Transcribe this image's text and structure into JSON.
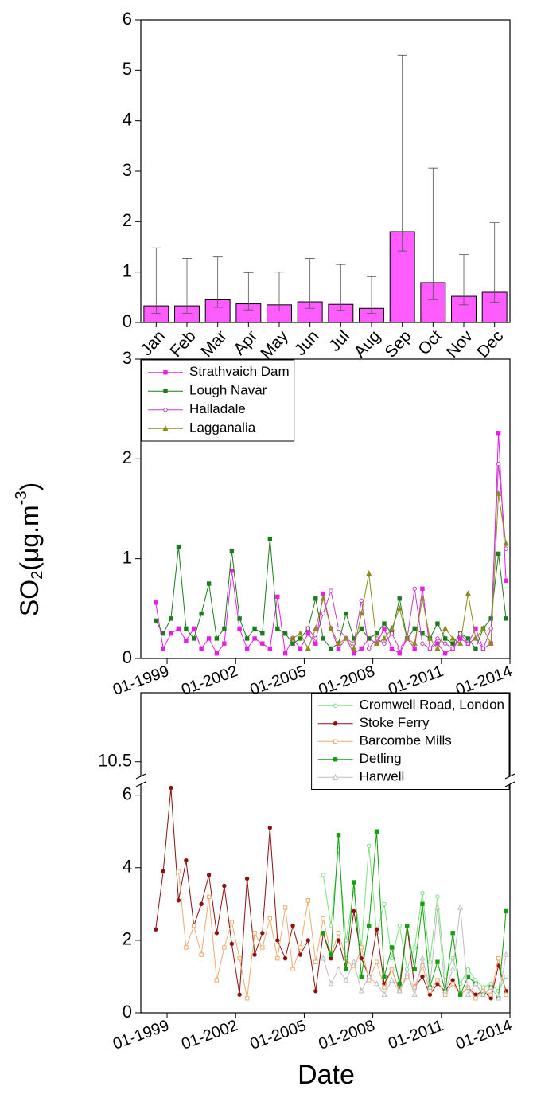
{
  "ylabel": {
    "base": "SO",
    "sub": "2",
    "unit": "(μg.m",
    "sup": "-3",
    "close": ")"
  },
  "chart_data": [
    {
      "type": "bar",
      "color": "#ff5cff",
      "categories": [
        "Jan",
        "Feb",
        "Mar",
        "Apr",
        "May",
        "Jun",
        "Jul",
        "Aug",
        "Sep",
        "Oct",
        "Nov",
        "Dec"
      ],
      "values": [
        0.33,
        0.33,
        0.45,
        0.37,
        0.35,
        0.41,
        0.36,
        0.28,
        1.8,
        0.79,
        0.52,
        0.6
      ],
      "err_plus": [
        1.15,
        0.94,
        0.85,
        0.62,
        0.65,
        0.86,
        0.79,
        0.63,
        3.5,
        2.27,
        0.83,
        1.38
      ],
      "err_minus": [
        0.15,
        0.15,
        0.15,
        0.12,
        0.12,
        0.13,
        0.12,
        0.1,
        0.38,
        0.34,
        0.17,
        0.2
      ],
      "ylim": [
        0,
        6
      ],
      "yticks": [
        0,
        1,
        2,
        3,
        4,
        5,
        6
      ]
    },
    {
      "type": "line",
      "legend": "upper left",
      "xlim": [
        1997.85,
        2014.0
      ],
      "ylim": [
        0,
        3
      ],
      "yticks": [
        0,
        1,
        2,
        3
      ],
      "xticks": [
        {
          "value": 1999,
          "label": "01-1999"
        },
        {
          "value": 2002,
          "label": "01-2002"
        },
        {
          "value": 2005,
          "label": "01-2005"
        },
        {
          "value": 2008,
          "label": "01-2008"
        },
        {
          "value": 2011,
          "label": "01-2011"
        },
        {
          "value": 2014,
          "label": "01-2014"
        }
      ],
      "series": [
        {
          "name": "Strathvaich Dam",
          "color": "#e61ee6",
          "marker": "square",
          "filled": true,
          "x": [
            1998.5,
            1998.83,
            1999.17,
            1999.5,
            1999.83,
            2000.17,
            2000.5,
            2000.83,
            2001.17,
            2001.5,
            2001.83,
            2002.17,
            2002.5,
            2002.83,
            2003.17,
            2003.5,
            2003.83,
            2004.17,
            2004.5,
            2004.83,
            2005.17,
            2005.5,
            2005.83,
            2006.17,
            2006.5,
            2006.83,
            2007.17,
            2007.5,
            2007.83,
            2008.17,
            2008.5,
            2008.83,
            2009.17,
            2009.5,
            2009.83,
            2010.17,
            2010.5,
            2010.83,
            2011.17,
            2011.5,
            2011.83,
            2012.17,
            2012.5,
            2012.83,
            2013.17,
            2013.5,
            2013.83
          ],
          "values": [
            0.56,
            0.1,
            0.25,
            0.3,
            0.18,
            0.3,
            0.1,
            0.2,
            0.05,
            0.15,
            0.88,
            0.3,
            0.1,
            0.2,
            0.15,
            0.1,
            0.62,
            0.05,
            0.2,
            0.1,
            0.25,
            0.15,
            0.65,
            0.3,
            0.1,
            0.2,
            0.05,
            0.1,
            0.2,
            0.15,
            0.3,
            0.1,
            0.05,
            0.2,
            0.1,
            0.7,
            0.1,
            0.15,
            0.05,
            0.1,
            0.2,
            0.15,
            0.3,
            0.1,
            0.15,
            2.26,
            0.78
          ]
        },
        {
          "name": "Lough Navar",
          "color": "#1e7a1e",
          "marker": "square",
          "filled": true,
          "x": [
            1998.5,
            1998.83,
            1999.17,
            1999.5,
            1999.83,
            2000.17,
            2000.5,
            2000.83,
            2001.17,
            2001.5,
            2001.83,
            2002.17,
            2002.5,
            2002.83,
            2003.17,
            2003.5,
            2003.83,
            2004.17,
            2004.5,
            2004.83,
            2005.17,
            2005.5,
            2005.83,
            2006.17,
            2006.5,
            2006.83,
            2007.17,
            2007.5,
            2007.83,
            2008.17,
            2008.5,
            2008.83,
            2009.17,
            2009.5,
            2009.83,
            2010.17,
            2010.5,
            2010.83,
            2011.17,
            2011.5,
            2011.83,
            2012.17,
            2012.5,
            2012.83,
            2013.17,
            2013.5,
            2013.83
          ],
          "values": [
            0.38,
            0.25,
            0.4,
            1.12,
            0.3,
            0.2,
            0.45,
            0.75,
            0.2,
            0.3,
            1.08,
            0.4,
            0.2,
            0.3,
            0.25,
            1.2,
            0.3,
            0.25,
            0.15,
            0.2,
            0.3,
            0.6,
            0.2,
            0.1,
            0.15,
            0.45,
            0.2,
            0.3,
            0.2,
            0.25,
            0.35,
            0.25,
            0.6,
            0.2,
            0.3,
            0.25,
            0.2,
            0.35,
            0.2,
            0.15,
            0.25,
            0.2,
            0.1,
            0.3,
            0.4,
            1.05,
            0.4
          ]
        },
        {
          "name": "Halladale",
          "color": "#c040c0",
          "marker": "circle",
          "filled": false,
          "x": [
            2005.17,
            2005.5,
            2005.83,
            2006.17,
            2006.5,
            2006.83,
            2007.17,
            2007.5,
            2007.83,
            2008.17,
            2008.5,
            2008.83,
            2009.17,
            2009.5,
            2009.83,
            2010.17,
            2010.5,
            2010.83,
            2011.17,
            2011.5,
            2011.83,
            2012.17,
            2012.5,
            2012.83,
            2013.17,
            2013.5,
            2013.83
          ],
          "values": [
            0.3,
            0.2,
            0.45,
            0.68,
            0.3,
            0.2,
            0.15,
            0.58,
            0.1,
            0.2,
            0.15,
            0.25,
            0.1,
            0.2,
            0.7,
            0.15,
            0.1,
            0.2,
            0.15,
            0.1,
            0.25,
            0.15,
            0.2,
            0.1,
            0.3,
            1.95,
            1.1
          ]
        },
        {
          "name": "Lagganalia",
          "color": "#8c8c1e",
          "marker": "triangle",
          "filled": true,
          "x": [
            2004.5,
            2004.83,
            2005.17,
            2005.5,
            2005.83,
            2006.17,
            2006.5,
            2006.83,
            2007.17,
            2007.5,
            2007.83,
            2008.17,
            2008.5,
            2008.83,
            2009.17,
            2009.5,
            2009.83,
            2010.17,
            2010.5,
            2010.83,
            2011.17,
            2011.5,
            2011.83,
            2012.17,
            2012.5,
            2012.83,
            2013.17,
            2013.5,
            2013.83
          ],
          "values": [
            0.2,
            0.25,
            0.1,
            0.3,
            0.6,
            0.3,
            0.15,
            0.2,
            0.1,
            0.45,
            0.85,
            0.15,
            0.2,
            0.3,
            0.5,
            0.2,
            0.15,
            0.6,
            0.2,
            0.1,
            0.3,
            0.2,
            0.15,
            0.65,
            0.2,
            0.3,
            0.15,
            1.65,
            1.15
          ]
        }
      ]
    },
    {
      "type": "line",
      "legend": "upper right",
      "xlabel": "Date",
      "xlim": [
        1997.85,
        2014.0
      ],
      "ylim": [
        0,
        6.3
      ],
      "yticks": [
        0,
        2,
        4,
        6
      ],
      "ybreak_lim": [
        10.1,
        12.4
      ],
      "ybreak_ticks": [
        10.5
      ],
      "xticks": [
        {
          "value": 1999,
          "label": "01-1999"
        },
        {
          "value": 2002,
          "label": "01-2002"
        },
        {
          "value": 2005,
          "label": "01-2005"
        },
        {
          "value": 2008,
          "label": "01-2008"
        },
        {
          "value": 2011,
          "label": "01-2011"
        },
        {
          "value": 2014,
          "label": "01-2014"
        }
      ],
      "series": [
        {
          "name": "Cromwell Road, London",
          "color": "#7de07d",
          "marker": "circle",
          "filled": false,
          "x": [
            2005.83,
            2006.17,
            2006.5,
            2006.83,
            2007.17,
            2007.5,
            2007.83,
            2008.17,
            2008.5,
            2008.83,
            2009.17,
            2009.5,
            2009.83,
            2010.17,
            2010.5,
            2010.83,
            2011.17,
            2011.5,
            2011.83,
            2012.17,
            2012.5,
            2012.83,
            2013.17,
            2013.5,
            2013.83
          ],
          "values": [
            3.8,
            2.4,
            4.5,
            2.0,
            3.4,
            1.8,
            4.6,
            2.2,
            3.0,
            1.5,
            2.4,
            1.2,
            1.8,
            3.3,
            1.4,
            3.2,
            1.0,
            1.5,
            0.8,
            1.2,
            0.9,
            0.7,
            0.8,
            0.6,
            1.0
          ]
        },
        {
          "name": "Stoke Ferry",
          "color": "#8b1010",
          "marker": "circle",
          "filled": true,
          "x": [
            1998.5,
            1998.83,
            1999.17,
            1999.5,
            1999.83,
            2000.17,
            2000.5,
            2000.83,
            2001.17,
            2001.5,
            2001.83,
            2002.17,
            2002.5,
            2002.83,
            2003.17,
            2003.5,
            2003.83,
            2004.17,
            2004.5,
            2004.83,
            2005.17,
            2005.5,
            2005.83,
            2006.17,
            2006.5,
            2006.83,
            2007.17,
            2007.5,
            2007.83,
            2008.17,
            2008.5,
            2008.83,
            2009.17,
            2009.5,
            2009.83,
            2010.17,
            2010.5,
            2010.83,
            2011.17,
            2011.5,
            2011.83,
            2012.17,
            2012.5,
            2012.83,
            2013.17,
            2013.5,
            2013.83
          ],
          "values": [
            2.3,
            3.9,
            6.2,
            3.1,
            4.2,
            2.4,
            3.0,
            3.8,
            2.2,
            3.5,
            1.9,
            0.5,
            3.7,
            1.6,
            2.2,
            5.1,
            2.0,
            1.5,
            2.4,
            1.6,
            2.0,
            0.6,
            2.2,
            1.5,
            2.0,
            1.2,
            2.8,
            1.5,
            1.0,
            2.3,
            0.8,
            1.2,
            0.6,
            2.4,
            0.7,
            1.0,
            0.5,
            0.8,
            0.6,
            0.9,
            0.5,
            0.7,
            0.5,
            0.6,
            0.4,
            1.3,
            0.6
          ]
        },
        {
          "name": "Barcombe Mills",
          "color": "#f0aa70",
          "marker": "square",
          "filled": false,
          "x": [
            1999.5,
            1999.83,
            2000.17,
            2000.5,
            2000.83,
            2001.17,
            2001.5,
            2001.83,
            2002.17,
            2002.5,
            2002.83,
            2003.17,
            2003.5,
            2003.83,
            2004.17,
            2004.5,
            2004.83,
            2005.17,
            2005.5,
            2005.83,
            2006.17,
            2006.5,
            2006.83,
            2007.17,
            2007.5,
            2007.83,
            2008.17,
            2008.5,
            2008.83,
            2009.17,
            2009.5,
            2009.83,
            2010.17,
            2010.5,
            2010.83,
            2011.17,
            2011.5,
            2011.83,
            2012.17,
            2012.5,
            2012.83,
            2013.17,
            2013.5,
            2013.83
          ],
          "values": [
            3.9,
            1.8,
            2.4,
            1.6,
            3.2,
            0.9,
            1.8,
            2.5,
            1.5,
            0.4,
            2.2,
            1.8,
            2.6,
            1.5,
            2.9,
            1.2,
            1.8,
            3.1,
            1.4,
            2.6,
            1.6,
            2.2,
            1.5,
            1.2,
            1.8,
            0.9,
            1.4,
            0.7,
            1.2,
            0.6,
            1.0,
            0.7,
            1.3,
            0.6,
            0.9,
            0.5,
            0.8,
            0.5,
            0.7,
            0.4,
            0.6,
            0.5,
            1.5,
            0.5
          ]
        },
        {
          "name": "Detling",
          "color": "#10a010",
          "marker": "square",
          "filled": true,
          "x": [
            2005.83,
            2006.17,
            2006.5,
            2006.83,
            2007.17,
            2007.5,
            2007.83,
            2008.17,
            2008.5,
            2008.83,
            2009.17,
            2009.5,
            2009.83,
            2010.17,
            2010.5,
            2010.83,
            2011.17,
            2011.5,
            2011.83,
            2012.17,
            2012.5,
            2012.83,
            2013.17,
            2013.5,
            2013.83
          ],
          "values": [
            2.2,
            1.6,
            4.9,
            1.2,
            3.6,
            1.0,
            2.4,
            5.0,
            1.0,
            1.8,
            0.8,
            2.4,
            1.2,
            3.0,
            0.7,
            1.4,
            0.6,
            2.2,
            0.5,
            1.0,
            0.8,
            0.5,
            0.7,
            0.4,
            2.8
          ]
        },
        {
          "name": "Harwell",
          "color": "#bdbdbd",
          "marker": "triangle",
          "filled": false,
          "x": [
            2005.83,
            2006.17,
            2006.5,
            2006.83,
            2007.17,
            2007.5,
            2007.83,
            2008.17,
            2008.5,
            2008.83,
            2009.17,
            2009.5,
            2009.83,
            2010.17,
            2010.5,
            2010.83,
            2011.17,
            2011.5,
            2011.83,
            2012.17,
            2012.5,
            2012.83,
            2013.17,
            2013.5,
            2013.83
          ],
          "values": [
            1.5,
            0.8,
            1.2,
            0.9,
            1.4,
            0.6,
            1.0,
            0.8,
            0.5,
            0.9,
            0.6,
            1.1,
            0.5,
            1.5,
            0.7,
            2.9,
            0.6,
            1.2,
            2.9,
            0.5,
            0.8,
            0.5,
            0.7,
            0.4,
            1.6
          ]
        }
      ]
    }
  ]
}
